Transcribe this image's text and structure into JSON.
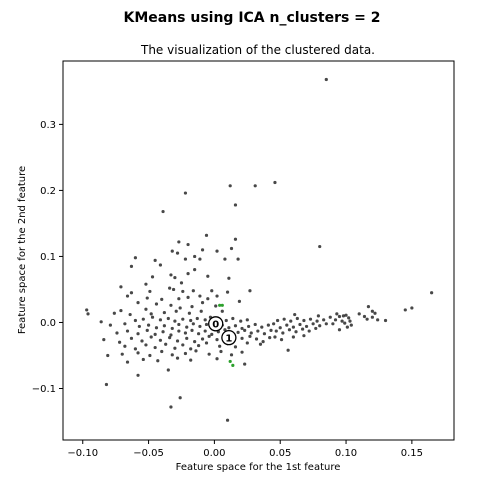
{
  "chart_data": {
    "type": "scatter",
    "suptitle": "KMeans  using ICA  n_clusters = 2",
    "title": "The visualization of the clustered data.",
    "xlabel": "Feature space for the 1st feature",
    "ylabel": "Feature space for the 2nd feature",
    "xlim": [
      -0.115,
      0.182
    ],
    "ylim": [
      -0.178,
      0.396
    ],
    "xticks": [
      -0.1,
      -0.05,
      0.0,
      0.05,
      0.1,
      0.15
    ],
    "xtick_labels": [
      "−0.10",
      "−0.05",
      "0.00",
      "0.05",
      "0.10",
      "0.15"
    ],
    "yticks": [
      -0.1,
      0.0,
      0.1,
      0.2,
      0.3
    ],
    "ytick_labels": [
      "−0.1",
      "0.0",
      "0.1",
      "0.2",
      "0.3"
    ],
    "grid": false,
    "colors": {
      "points": "#1a1a1a",
      "highlight": "#2ca02c",
      "center_fill": "#ffffff",
      "center_edge": "#000000"
    },
    "centers": [
      {
        "label": "0",
        "x": 0.001,
        "y": -0.002
      },
      {
        "label": "1",
        "x": 0.011,
        "y": -0.023
      }
    ],
    "highlight_points": [
      {
        "x": 0.004,
        "y": 0.026
      },
      {
        "x": 0.006,
        "y": 0.026
      },
      {
        "x": 0.014,
        "y": -0.065
      },
      {
        "x": 0.012,
        "y": -0.059
      }
    ],
    "points": [
      {
        "x": 0.085,
        "y": 0.368
      },
      {
        "x": 0.012,
        "y": 0.207
      },
      {
        "x": -0.022,
        "y": 0.196
      },
      {
        "x": 0.031,
        "y": 0.207
      },
      {
        "x": 0.046,
        "y": 0.212
      },
      {
        "x": 0.016,
        "y": 0.178
      },
      {
        "x": -0.039,
        "y": 0.168
      },
      {
        "x": -0.006,
        "y": 0.132
      },
      {
        "x": 0.016,
        "y": 0.126
      },
      {
        "x": -0.027,
        "y": 0.122
      },
      {
        "x": -0.02,
        "y": 0.118
      },
      {
        "x": 0.013,
        "y": 0.112
      },
      {
        "x": 0.08,
        "y": 0.115
      },
      {
        "x": -0.06,
        "y": 0.098
      },
      {
        "x": -0.028,
        "y": 0.105
      },
      {
        "x": -0.032,
        "y": 0.108
      },
      {
        "x": 0.002,
        "y": 0.108
      },
      {
        "x": -0.015,
        "y": 0.1
      },
      {
        "x": -0.063,
        "y": 0.085
      },
      {
        "x": -0.045,
        "y": 0.094
      },
      {
        "x": -0.022,
        "y": 0.096
      },
      {
        "x": -0.011,
        "y": 0.096
      },
      {
        "x": 0.008,
        "y": 0.096
      },
      {
        "x": 0.018,
        "y": 0.096
      },
      {
        "x": -0.009,
        "y": 0.11
      },
      {
        "x": -0.071,
        "y": 0.054
      },
      {
        "x": -0.052,
        "y": 0.058
      },
      {
        "x": -0.047,
        "y": 0.069
      },
      {
        "x": -0.033,
        "y": 0.072
      },
      {
        "x": -0.03,
        "y": 0.068
      },
      {
        "x": -0.005,
        "y": 0.07
      },
      {
        "x": 0.011,
        "y": 0.067
      },
      {
        "x": -0.02,
        "y": 0.074
      },
      {
        "x": -0.041,
        "y": 0.087
      },
      {
        "x": -0.015,
        "y": 0.08
      },
      {
        "x": -0.025,
        "y": 0.06
      },
      {
        "x": -0.016,
        "y": 0.048
      },
      {
        "x": -0.024,
        "y": 0.047
      },
      {
        "x": -0.031,
        "y": 0.05
      },
      {
        "x": -0.034,
        "y": 0.052
      },
      {
        "x": -0.002,
        "y": 0.048
      },
      {
        "x": 0.01,
        "y": 0.046
      },
      {
        "x": 0.027,
        "y": 0.048
      },
      {
        "x": -0.049,
        "y": 0.047
      },
      {
        "x": -0.063,
        "y": 0.045
      },
      {
        "x": -0.066,
        "y": 0.04
      },
      {
        "x": -0.051,
        "y": 0.037
      },
      {
        "x": -0.04,
        "y": 0.035
      },
      {
        "x": -0.027,
        "y": 0.036
      },
      {
        "x": -0.02,
        "y": 0.038
      },
      {
        "x": -0.011,
        "y": 0.04
      },
      {
        "x": -0.005,
        "y": 0.036
      },
      {
        "x": 0.002,
        "y": 0.04
      },
      {
        "x": 0.019,
        "y": 0.032
      },
      {
        "x": -0.058,
        "y": 0.03
      },
      {
        "x": -0.044,
        "y": 0.028
      },
      {
        "x": -0.033,
        "y": 0.026
      },
      {
        "x": -0.026,
        "y": 0.022
      },
      {
        "x": -0.017,
        "y": 0.024
      },
      {
        "x": -0.009,
        "y": 0.03
      },
      {
        "x": 0.001,
        "y": 0.025
      },
      {
        "x": -0.052,
        "y": 0.02
      },
      {
        "x": -0.071,
        "y": 0.018
      },
      {
        "x": -0.076,
        "y": 0.014
      },
      {
        "x": -0.064,
        "y": 0.012
      },
      {
        "x": -0.048,
        "y": 0.013
      },
      {
        "x": -0.038,
        "y": 0.015
      },
      {
        "x": -0.029,
        "y": 0.017
      },
      {
        "x": -0.019,
        "y": 0.014
      },
      {
        "x": -0.01,
        "y": 0.017
      },
      {
        "x": 0.006,
        "y": 0.017
      },
      {
        "x": -0.097,
        "y": 0.019
      },
      {
        "x": -0.096,
        "y": 0.013
      },
      {
        "x": -0.086,
        "y": 0.001
      },
      {
        "x": -0.079,
        "y": -0.004
      },
      {
        "x": -0.068,
        "y": -0.002
      },
      {
        "x": -0.06,
        "y": 0.003
      },
      {
        "x": -0.054,
        "y": 0.005
      },
      {
        "x": -0.047,
        "y": 0.008
      },
      {
        "x": -0.041,
        "y": 0.004
      },
      {
        "x": -0.035,
        "y": 0.006
      },
      {
        "x": -0.03,
        "y": 0.002
      },
      {
        "x": -0.024,
        "y": 0.005
      },
      {
        "x": -0.018,
        "y": 0.003
      },
      {
        "x": -0.013,
        "y": 0.006
      },
      {
        "x": -0.007,
        "y": 0.004
      },
      {
        "x": -0.003,
        "y": 0.008
      },
      {
        "x": 0.004,
        "y": 0.005
      },
      {
        "x": 0.009,
        "y": 0.003
      },
      {
        "x": 0.014,
        "y": 0.006
      },
      {
        "x": 0.02,
        "y": 0.002
      },
      {
        "x": 0.025,
        "y": 0.004
      },
      {
        "x": -0.057,
        "y": -0.006
      },
      {
        "x": -0.05,
        "y": -0.004
      },
      {
        "x": -0.044,
        "y": -0.008
      },
      {
        "x": -0.038,
        "y": -0.005
      },
      {
        "x": -0.032,
        "y": -0.009
      },
      {
        "x": -0.027,
        "y": -0.003
      },
      {
        "x": -0.021,
        "y": -0.007
      },
      {
        "x": -0.016,
        "y": -0.002
      },
      {
        "x": -0.011,
        "y": -0.006
      },
      {
        "x": -0.006,
        "y": -0.003
      },
      {
        "x": 0.0,
        "y": -0.007
      },
      {
        "x": 0.006,
        "y": -0.004
      },
      {
        "x": 0.011,
        "y": -0.008
      },
      {
        "x": 0.016,
        "y": -0.005
      },
      {
        "x": 0.021,
        "y": -0.009
      },
      {
        "x": 0.026,
        "y": -0.006
      },
      {
        "x": 0.031,
        "y": -0.003
      },
      {
        "x": 0.036,
        "y": -0.007
      },
      {
        "x": 0.041,
        "y": -0.004
      },
      {
        "x": -0.074,
        "y": -0.016
      },
      {
        "x": -0.066,
        "y": -0.013
      },
      {
        "x": -0.058,
        "y": -0.017
      },
      {
        "x": -0.051,
        "y": -0.012
      },
      {
        "x": -0.045,
        "y": -0.018
      },
      {
        "x": -0.039,
        "y": -0.014
      },
      {
        "x": -0.033,
        "y": -0.019
      },
      {
        "x": -0.027,
        "y": -0.013
      },
      {
        "x": -0.022,
        "y": -0.016
      },
      {
        "x": -0.017,
        "y": -0.012
      },
      {
        "x": -0.012,
        "y": -0.017
      },
      {
        "x": -0.007,
        "y": -0.013
      },
      {
        "x": -0.002,
        "y": -0.018
      },
      {
        "x": 0.003,
        "y": -0.014
      },
      {
        "x": 0.008,
        "y": -0.011
      },
      {
        "x": 0.018,
        "y": -0.015
      },
      {
        "x": 0.023,
        "y": -0.012
      },
      {
        "x": 0.028,
        "y": -0.016
      },
      {
        "x": 0.033,
        "y": -0.013
      },
      {
        "x": 0.038,
        "y": -0.017
      },
      {
        "x": 0.043,
        "y": -0.012
      },
      {
        "x": -0.084,
        "y": -0.026
      },
      {
        "x": -0.072,
        "y": -0.03
      },
      {
        "x": -0.063,
        "y": -0.024
      },
      {
        "x": -0.055,
        "y": -0.028
      },
      {
        "x": -0.048,
        "y": -0.022
      },
      {
        "x": -0.041,
        "y": -0.027
      },
      {
        "x": -0.034,
        "y": -0.023
      },
      {
        "x": -0.028,
        "y": -0.028
      },
      {
        "x": -0.021,
        "y": -0.024
      },
      {
        "x": -0.015,
        "y": -0.029
      },
      {
        "x": -0.009,
        "y": -0.025
      },
      {
        "x": -0.004,
        "y": -0.021
      },
      {
        "x": 0.002,
        "y": -0.026
      },
      {
        "x": 0.021,
        "y": -0.024
      },
      {
        "x": 0.027,
        "y": -0.021
      },
      {
        "x": 0.032,
        "y": -0.025
      },
      {
        "x": 0.037,
        "y": -0.029
      },
      {
        "x": 0.042,
        "y": -0.023
      },
      {
        "x": -0.068,
        "y": -0.036
      },
      {
        "x": -0.06,
        "y": -0.04
      },
      {
        "x": -0.052,
        "y": -0.034
      },
      {
        "x": -0.045,
        "y": -0.038
      },
      {
        "x": -0.037,
        "y": -0.033
      },
      {
        "x": -0.03,
        "y": -0.039
      },
      {
        "x": -0.024,
        "y": -0.034
      },
      {
        "x": -0.018,
        "y": -0.04
      },
      {
        "x": -0.012,
        "y": -0.035
      },
      {
        "x": -0.006,
        "y": -0.031
      },
      {
        "x": 0.004,
        "y": -0.036
      },
      {
        "x": 0.01,
        "y": -0.032
      },
      {
        "x": 0.016,
        "y": -0.037
      },
      {
        "x": 0.025,
        "y": -0.031
      },
      {
        "x": 0.035,
        "y": -0.033
      },
      {
        "x": -0.081,
        "y": -0.05
      },
      {
        "x": -0.07,
        "y": -0.048
      },
      {
        "x": -0.058,
        "y": -0.046
      },
      {
        "x": -0.049,
        "y": -0.05
      },
      {
        "x": -0.04,
        "y": -0.044
      },
      {
        "x": -0.032,
        "y": -0.049
      },
      {
        "x": -0.022,
        "y": -0.047
      },
      {
        "x": -0.014,
        "y": -0.043
      },
      {
        "x": -0.004,
        "y": -0.048
      },
      {
        "x": 0.005,
        "y": -0.044
      },
      {
        "x": 0.013,
        "y": -0.049
      },
      {
        "x": 0.021,
        "y": -0.045
      },
      {
        "x": 0.056,
        "y": -0.042
      },
      {
        "x": -0.066,
        "y": -0.06
      },
      {
        "x": -0.054,
        "y": -0.056
      },
      {
        "x": -0.043,
        "y": -0.058
      },
      {
        "x": -0.028,
        "y": -0.054
      },
      {
        "x": -0.018,
        "y": -0.057
      },
      {
        "x": 0.002,
        "y": -0.055
      },
      {
        "x": 0.023,
        "y": -0.063
      },
      {
        "x": -0.058,
        "y": -0.08
      },
      {
        "x": -0.035,
        "y": -0.072
      },
      {
        "x": -0.082,
        "y": -0.094
      },
      {
        "x": -0.026,
        "y": -0.114
      },
      {
        "x": -0.033,
        "y": -0.128
      },
      {
        "x": 0.01,
        "y": -0.148
      },
      {
        "x": 0.045,
        "y": -0.002
      },
      {
        "x": 0.05,
        "y": -0.008
      },
      {
        "x": 0.055,
        "y": -0.004
      },
      {
        "x": 0.06,
        "y": -0.007
      },
      {
        "x": 0.065,
        "y": -0.003
      },
      {
        "x": 0.07,
        "y": -0.006
      },
      {
        "x": 0.075,
        "y": -0.002
      },
      {
        "x": 0.08,
        "y": -0.005
      },
      {
        "x": 0.085,
        "y": -0.002
      },
      {
        "x": 0.048,
        "y": 0.003
      },
      {
        "x": 0.053,
        "y": 0.005
      },
      {
        "x": 0.058,
        "y": 0.002
      },
      {
        "x": 0.063,
        "y": 0.006
      },
      {
        "x": 0.068,
        "y": 0.003
      },
      {
        "x": 0.073,
        "y": 0.005
      },
      {
        "x": 0.078,
        "y": 0.002
      },
      {
        "x": 0.083,
        "y": 0.004
      },
      {
        "x": 0.047,
        "y": -0.013
      },
      {
        "x": 0.052,
        "y": -0.016
      },
      {
        "x": 0.057,
        "y": -0.011
      },
      {
        "x": 0.062,
        "y": -0.014
      },
      {
        "x": 0.067,
        "y": -0.01
      },
      {
        "x": 0.072,
        "y": -0.013
      },
      {
        "x": 0.077,
        "y": -0.009
      },
      {
        "x": 0.046,
        "y": -0.022
      },
      {
        "x": 0.051,
        "y": -0.026
      },
      {
        "x": 0.06,
        "y": -0.022
      },
      {
        "x": 0.068,
        "y": -0.02
      },
      {
        "x": 0.088,
        "y": 0.008
      },
      {
        "x": 0.092,
        "y": 0.004
      },
      {
        "x": 0.095,
        "y": 0.009
      },
      {
        "x": 0.097,
        "y": 0.002
      },
      {
        "x": 0.09,
        "y": -0.002
      },
      {
        "x": 0.093,
        "y": 0.013
      },
      {
        "x": 0.098,
        "y": 0.01
      },
      {
        "x": 0.1,
        "y": 0.011
      },
      {
        "x": 0.102,
        "y": 0.007
      },
      {
        "x": 0.099,
        "y": -0.001
      },
      {
        "x": 0.103,
        "y": 0.002
      },
      {
        "x": 0.104,
        "y": -0.004
      },
      {
        "x": 0.101,
        "y": -0.007
      },
      {
        "x": 0.095,
        "y": -0.011
      },
      {
        "x": 0.11,
        "y": 0.013
      },
      {
        "x": 0.114,
        "y": 0.009
      },
      {
        "x": 0.117,
        "y": 0.024
      },
      {
        "x": 0.12,
        "y": 0.017
      },
      {
        "x": 0.122,
        "y": 0.014
      },
      {
        "x": 0.12,
        "y": 0.008
      },
      {
        "x": 0.116,
        "y": 0.005
      },
      {
        "x": 0.124,
        "y": 0.004
      },
      {
        "x": 0.13,
        "y": 0.003
      },
      {
        "x": 0.145,
        "y": 0.019
      },
      {
        "x": 0.15,
        "y": 0.022
      },
      {
        "x": 0.165,
        "y": 0.045
      },
      {
        "x": 0.079,
        "y": 0.01
      },
      {
        "x": 0.061,
        "y": 0.012
      }
    ]
  }
}
